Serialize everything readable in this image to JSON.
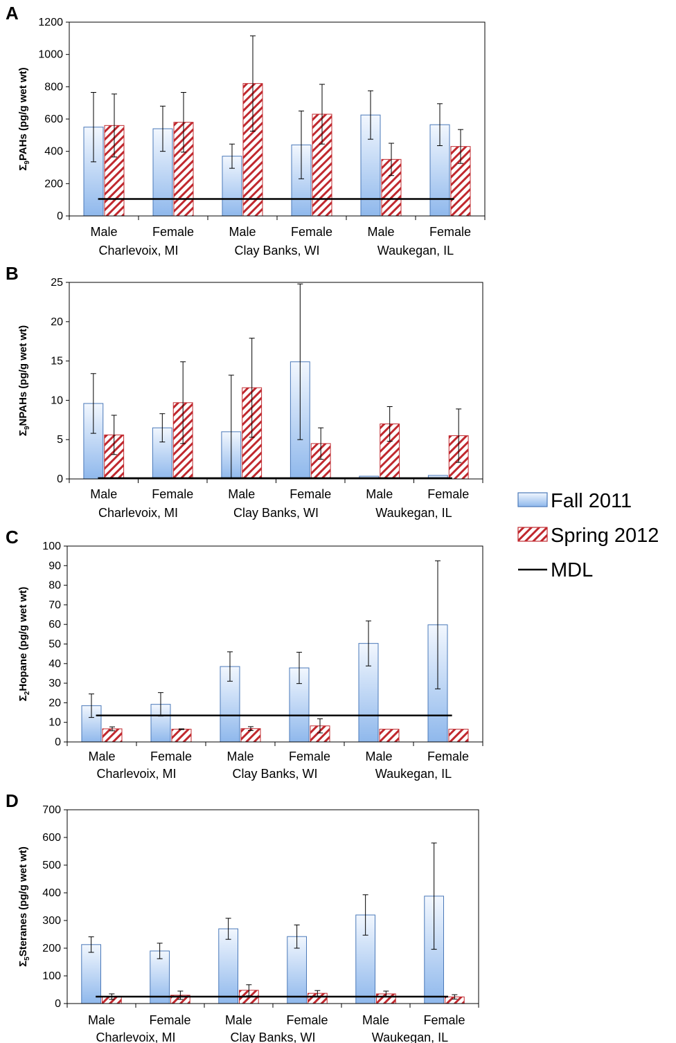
{
  "colors": {
    "fall_fill": "#b8d3f4",
    "fall_stroke": "#4a78b8",
    "spring_hatch": "#c0282e",
    "mdl": "#000000"
  },
  "legend": [
    {
      "key": "fall",
      "label": "Fall 2011"
    },
    {
      "key": "spring",
      "label": "Spring 2012"
    },
    {
      "key": "mdl",
      "label": "MDL"
    }
  ],
  "chart_data": [
    {
      "panel": "A",
      "type": "bar",
      "ylabel_symbol": "Σ",
      "ylabel_sub": "9",
      "ylabel_rest": "PAHs (pg/g wet wt)",
      "ylim": [
        0,
        1200
      ],
      "yticks": [
        "0",
        "200",
        "400",
        "600",
        "800",
        "1000",
        "1200"
      ],
      "categories": [
        "Male",
        "Female",
        "Male",
        "Female",
        "Male",
        "Female"
      ],
      "groups": [
        "Charlevoix, MI",
        "Clay Banks, WI",
        "Waukegan, IL"
      ],
      "series": [
        {
          "name": "Fall 2011",
          "values": [
            550,
            540,
            370,
            440,
            625,
            565
          ],
          "err": [
            215,
            140,
            75,
            210,
            150,
            130
          ]
        },
        {
          "name": "Spring 2012",
          "values": [
            560,
            580,
            820,
            630,
            350,
            430
          ],
          "err": [
            195,
            185,
            295,
            185,
            100,
            105
          ]
        }
      ],
      "mdl": 105
    },
    {
      "panel": "B",
      "type": "bar",
      "ylabel_symbol": "Σ",
      "ylabel_sub": "9",
      "ylabel_rest": "NPAHs (pg/g wet wt)",
      "ylim": [
        0,
        25
      ],
      "yticks": [
        "0",
        "5",
        "10",
        "15",
        "20",
        "25"
      ],
      "categories": [
        "Male",
        "Female",
        "Male",
        "Female",
        "Male",
        "Female"
      ],
      "groups": [
        "Charlevoix, MI",
        "Clay Banks, WI",
        "Waukegan, IL"
      ],
      "series": [
        {
          "name": "Fall 2011",
          "values": [
            9.6,
            6.5,
            6.0,
            14.9,
            0.35,
            0.45
          ],
          "err": [
            3.8,
            1.8,
            7.2,
            9.9,
            0,
            0
          ]
        },
        {
          "name": "Spring 2012",
          "values": [
            5.6,
            9.7,
            11.6,
            4.5,
            7.0,
            5.5
          ],
          "err": [
            2.5,
            5.2,
            6.3,
            2.0,
            2.2,
            3.4
          ]
        }
      ],
      "mdl": 0.1
    },
    {
      "panel": "C",
      "type": "bar",
      "ylabel_symbol": "Σ",
      "ylabel_sub": "2",
      "ylabel_rest": "Hopane (pg/g wet wt)",
      "ylim": [
        0,
        100
      ],
      "yticks": [
        "0",
        "10",
        "20",
        "30",
        "40",
        "50",
        "60",
        "70",
        "80",
        "90",
        "100"
      ],
      "categories": [
        "Male",
        "Female",
        "Male",
        "Female",
        "Male",
        "Female"
      ],
      "groups": [
        "Charlevoix, MI",
        "Clay Banks, WI",
        "Waukegan, IL"
      ],
      "series": [
        {
          "name": "Fall 2011",
          "values": [
            18.5,
            19.2,
            38.5,
            37.8,
            50.3,
            59.8
          ],
          "err": [
            6,
            6,
            7.5,
            8,
            11.5,
            32.7
          ]
        },
        {
          "name": "Spring 2012",
          "values": [
            6.7,
            6.5,
            6.8,
            8.2,
            6.5,
            6.5
          ],
          "err": [
            1,
            0.2,
            1,
            3.6,
            0,
            0
          ]
        }
      ],
      "mdl": 13.5
    },
    {
      "panel": "D",
      "type": "bar",
      "ylabel_symbol": "Σ",
      "ylabel_sub": "5",
      "ylabel_rest": "Steranes (pg/g wet wt)",
      "ylim": [
        0,
        700
      ],
      "yticks": [
        "0",
        "100",
        "200",
        "300",
        "400",
        "500",
        "600",
        "700"
      ],
      "categories": [
        "Male",
        "Female",
        "Male",
        "Female",
        "Male",
        "Female"
      ],
      "groups": [
        "Charlevoix, MI",
        "Clay Banks, WI",
        "Waukegan, IL"
      ],
      "series": [
        {
          "name": "Fall 2011",
          "values": [
            213,
            190,
            270,
            242,
            320,
            388
          ],
          "err": [
            28,
            28,
            38,
            42,
            73,
            192
          ]
        },
        {
          "name": "Spring 2012",
          "values": [
            25,
            30,
            48,
            37,
            35,
            24
          ],
          "err": [
            10,
            15,
            20,
            10,
            10,
            8
          ]
        }
      ],
      "mdl": 25
    }
  ]
}
